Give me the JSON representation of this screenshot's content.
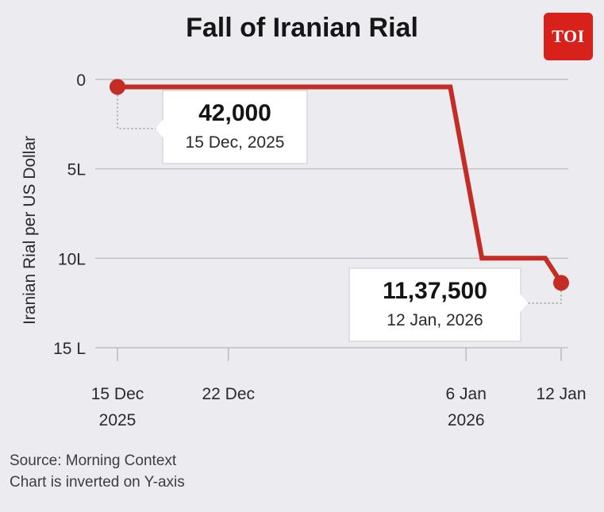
{
  "title": "Fall of Iranian Rial",
  "logo": {
    "text": "TOI",
    "color": "#d8211b"
  },
  "notes": {
    "source": "Source: Morning Context",
    "inverted": "Chart is inverted on Y-axis"
  },
  "colors": {
    "line": "#c32d25",
    "grid": "#b7b7bd",
    "background": "#ecebf0"
  },
  "chart_data": {
    "type": "line",
    "title": "Fall of Iranian Rial",
    "ylabel": "Iranian Rial per US Dollar",
    "xlabel": "",
    "y_inverted": true,
    "ylim": [
      0,
      1500000
    ],
    "yticks": [
      {
        "value": 0,
        "label": "0"
      },
      {
        "value": 500000,
        "label": "5L"
      },
      {
        "value": 1000000,
        "label": "10L"
      },
      {
        "value": 1500000,
        "label": "15 L"
      }
    ],
    "xlim": [
      "2025-12-15",
      "2026-01-12"
    ],
    "xticks": [
      {
        "date": "2025-12-15",
        "label": [
          "15 Dec",
          "2025"
        ]
      },
      {
        "date": "2025-12-22",
        "label": [
          "22 Dec"
        ]
      },
      {
        "date": "2026-01-06",
        "label": [
          "6 Jan",
          "2026"
        ]
      },
      {
        "date": "2026-01-12",
        "label": [
          "12 Jan"
        ]
      }
    ],
    "grid": true,
    "series": [
      {
        "points": [
          {
            "x": "2025-12-15",
            "y": 42000
          },
          {
            "x": "2026-01-05",
            "y": 42000
          },
          {
            "x": "2026-01-07",
            "y": 1000000
          },
          {
            "x": "2026-01-11",
            "y": 1000000
          },
          {
            "x": "2026-01-12",
            "y": 1137500
          }
        ]
      }
    ],
    "annotations": [
      {
        "x": "2025-12-15",
        "y": 42000,
        "value": "42,000",
        "date": "15 Dec, 2025"
      },
      {
        "x": "2026-01-12",
        "y": 1137500,
        "value": "11,37,500",
        "date": "12 Jan, 2026"
      }
    ]
  }
}
